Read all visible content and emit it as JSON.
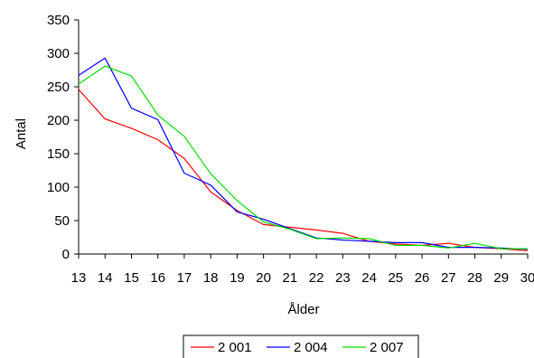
{
  "chart_data": {
    "type": "line",
    "xlabel": "Ålder",
    "ylabel": "Antal",
    "ylim": [
      0,
      350
    ],
    "yticks": [
      0,
      50,
      100,
      150,
      200,
      250,
      300,
      350
    ],
    "categories": [
      "13",
      "14",
      "15",
      "16",
      "17",
      "18",
      "19",
      "20",
      "21",
      "22",
      "23",
      "24",
      "25",
      "26",
      "27",
      "28",
      "29",
      "30"
    ],
    "grid": false,
    "legend": "bottom",
    "series": [
      {
        "name": "2 001",
        "color": "#ff0000",
        "values": [
          246,
          202,
          188,
          171,
          143,
          93,
          65,
          44,
          40,
          36,
          31,
          19,
          15,
          13,
          16,
          10,
          8,
          5
        ]
      },
      {
        "name": "2 004",
        "color": "#0000ff",
        "values": [
          267,
          293,
          218,
          201,
          121,
          103,
          63,
          52,
          38,
          24,
          21,
          19,
          17,
          17,
          10,
          10,
          9,
          7
        ]
      },
      {
        "name": "2 007",
        "color": "#00dd00",
        "values": [
          254,
          281,
          266,
          208,
          176,
          120,
          80,
          48,
          37,
          23,
          24,
          23,
          13,
          13,
          9,
          16,
          8,
          8
        ]
      }
    ]
  }
}
